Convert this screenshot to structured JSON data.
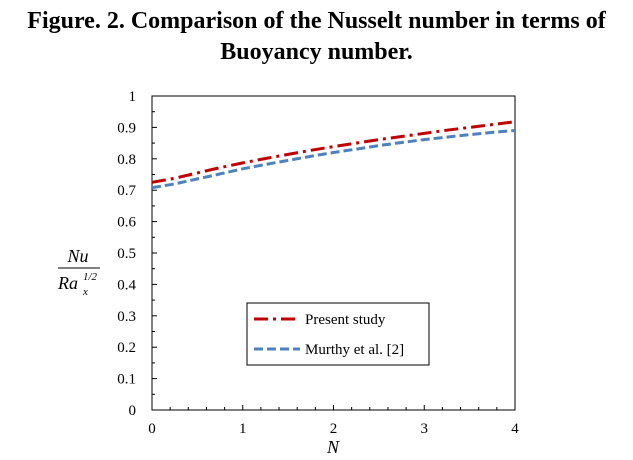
{
  "title": {
    "line1": "Figure. 2. Comparison of the Nusselt number in terms of",
    "line2": "Buoyancy number."
  },
  "chart_data": {
    "type": "line",
    "xlabel": "N",
    "ylabel": {
      "numerator": "Nu",
      "denominator_base": "Ra",
      "denominator_sub": "x",
      "denominator_sup": "1/2"
    },
    "xlim": [
      0,
      4
    ],
    "ylim": [
      0,
      1
    ],
    "xticks": [
      "0",
      "1",
      "2",
      "3",
      "4"
    ],
    "yticks": [
      "0",
      "0.1",
      "0.2",
      "0.3",
      "0.4",
      "0.5",
      "0.6",
      "0.7",
      "0.8",
      "0.9",
      "1"
    ],
    "grid": false,
    "legend_position": "lower-right",
    "series": [
      {
        "name": "Present study",
        "color": "#c00000",
        "dash": "dash-dot",
        "x": [
          0,
          0.25,
          0.5,
          0.75,
          1,
          1.25,
          1.5,
          1.75,
          2,
          2.25,
          2.5,
          2.75,
          3,
          3.25,
          3.5,
          3.75,
          4
        ],
        "y": [
          0.725,
          0.738,
          0.755,
          0.772,
          0.787,
          0.801,
          0.814,
          0.827,
          0.839,
          0.85,
          0.861,
          0.871,
          0.881,
          0.891,
          0.9,
          0.909,
          0.918
        ]
      },
      {
        "name": "Murthy et al. [2]",
        "color": "#4f81bd",
        "dash": "dash",
        "x": [
          0,
          0.25,
          0.5,
          0.75,
          1,
          1.25,
          1.5,
          1.75,
          2,
          2.25,
          2.5,
          2.75,
          3,
          3.25,
          3.5,
          3.75,
          4
        ],
        "y": [
          0.708,
          0.72,
          0.736,
          0.752,
          0.768,
          0.782,
          0.795,
          0.808,
          0.82,
          0.831,
          0.842,
          0.852,
          0.861,
          0.869,
          0.877,
          0.884,
          0.89
        ]
      }
    ]
  }
}
